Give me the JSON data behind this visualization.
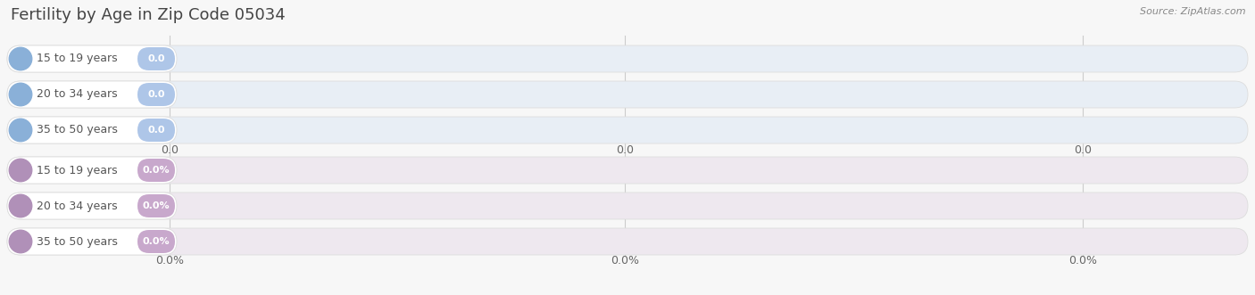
{
  "title": "Fertility by Age in Zip Code 05034",
  "source": "Source: ZipAtlas.com",
  "background_color": "#f7f7f7",
  "top_section": {
    "categories": [
      "15 to 19 years",
      "20 to 34 years",
      "35 to 50 years"
    ],
    "values": [
      0.0,
      0.0,
      0.0
    ],
    "bar_bg_color": "#e8eef5",
    "label_bg_color": "#ffffff",
    "value_badge_color": "#aec6e8",
    "left_circle_color": "#8ab0d8",
    "tick_labels": [
      "0.0",
      "0.0",
      "0.0"
    ],
    "label_text_color": "#555555",
    "value_text_color": "#ffffff"
  },
  "bottom_section": {
    "categories": [
      "15 to 19 years",
      "20 to 34 years",
      "35 to 50 years"
    ],
    "values": [
      0.0,
      0.0,
      0.0
    ],
    "bar_bg_color": "#eee8ef",
    "label_bg_color": "#ffffff",
    "value_badge_color": "#c8a8cc",
    "left_circle_color": "#b090b8",
    "tick_labels": [
      "0.0%",
      "0.0%",
      "0.0%"
    ],
    "label_text_color": "#555555",
    "value_text_color": "#ffffff"
  },
  "figsize": [
    14.06,
    3.31
  ],
  "dpi": 100
}
